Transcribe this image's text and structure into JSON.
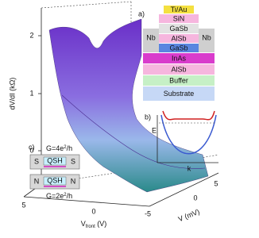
{
  "figure": {
    "plot": {
      "z_label": "dV/dI (kΩ)",
      "z_ticks": [
        "2",
        "1",
        "0"
      ],
      "x_label": {
        "main": "V",
        "sub": "front",
        "unit": " (V)"
      },
      "x_ticks": [
        "5",
        "0",
        "-5"
      ],
      "y_label": "V (mV)",
      "y_ticks": [
        "0",
        "5"
      ]
    },
    "panel_a": {
      "label": "a)",
      "layers": [
        "Ti/Au",
        "SiN",
        "GaSb",
        "Nb",
        "AlSb",
        "Nb",
        "GaSb",
        "InAs",
        "AlSb",
        "Buffer",
        "Substrate"
      ]
    },
    "panel_b": {
      "label": "b)",
      "energy": "E",
      "momentum": "k"
    },
    "panel_c": {
      "label": "c)",
      "top_conductance": {
        "prefix": "G=4e",
        "sup": "2",
        "suffix": "/h"
      },
      "top_junction": [
        "S",
        "QSH",
        "S"
      ],
      "bottom_junction": [
        "N",
        "QSH",
        "N"
      ],
      "bottom_conductance": {
        "prefix": "G=2e",
        "sup": "2",
        "suffix": "/h"
      }
    }
  }
}
